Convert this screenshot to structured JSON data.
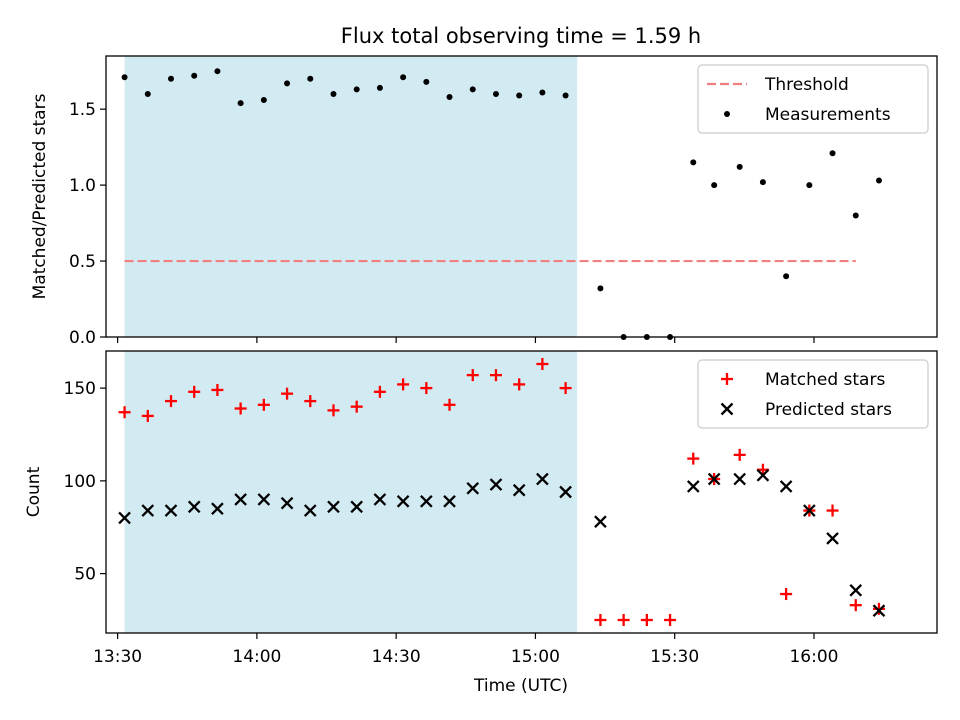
{
  "chart_data": {
    "title": "Flux total observing time = 1.59 h",
    "xlabel": "Time (UTC)",
    "x_unit": "minutes since 13:30 UTC",
    "x_ticks": [
      {
        "value": 0,
        "label": "13:30"
      },
      {
        "value": 30,
        "label": "14:00"
      },
      {
        "value": 60,
        "label": "14:30"
      },
      {
        "value": 90,
        "label": "15:00"
      },
      {
        "value": 120,
        "label": "15:30"
      },
      {
        "value": 150,
        "label": "16:00"
      }
    ],
    "xlim": [
      -2.5,
      176.5
    ],
    "shaded_interval": {
      "x0": 1.5,
      "x1": 99.0,
      "color": "#add8e6"
    },
    "panels": [
      {
        "type": "scatter",
        "ylabel": "Matched/Predicted stars",
        "ylim": [
          0,
          1.85
        ],
        "yticks": [
          0,
          0.5,
          1.0,
          1.5
        ],
        "ytick_labels": [
          "0.0",
          "0.5",
          "1.0",
          "1.5"
        ],
        "legend": "top-right",
        "threshold": {
          "name": "Threshold",
          "y": 0.5,
          "x_range": [
            1.5,
            159.0
          ],
          "color": "#f08080"
        },
        "series": [
          {
            "name": "Measurements",
            "color": "#000000",
            "marker": "dot",
            "points": [
              [
                1.5,
                1.71
              ],
              [
                6.5,
                1.6
              ],
              [
                11.5,
                1.7
              ],
              [
                16.5,
                1.72
              ],
              [
                21.5,
                1.75
              ],
              [
                26.5,
                1.54
              ],
              [
                31.5,
                1.56
              ],
              [
                36.5,
                1.67
              ],
              [
                41.5,
                1.7
              ],
              [
                46.5,
                1.6
              ],
              [
                51.5,
                1.63
              ],
              [
                56.5,
                1.64
              ],
              [
                61.5,
                1.71
              ],
              [
                66.5,
                1.68
              ],
              [
                71.5,
                1.58
              ],
              [
                76.5,
                1.63
              ],
              [
                81.5,
                1.6
              ],
              [
                86.5,
                1.59
              ],
              [
                91.5,
                1.61
              ],
              [
                96.5,
                1.59
              ],
              [
                104.0,
                0.32
              ],
              [
                109.0,
                0.0
              ],
              [
                114.0,
                0.0
              ],
              [
                119.0,
                0.0
              ],
              [
                124.0,
                1.15
              ],
              [
                128.5,
                1.0
              ],
              [
                134.0,
                1.12
              ],
              [
                139.0,
                1.02
              ],
              [
                144.0,
                0.4
              ],
              [
                149.0,
                1.0
              ],
              [
                154.0,
                1.21
              ],
              [
                159.0,
                0.8
              ],
              [
                164.0,
                1.03
              ]
            ]
          }
        ]
      },
      {
        "type": "scatter",
        "ylabel": "Count",
        "ylim": [
          18,
          170
        ],
        "yticks": [
          50,
          100,
          150
        ],
        "ytick_labels": [
          "50",
          "100",
          "150"
        ],
        "legend": "top-right",
        "series": [
          {
            "name": "Matched stars",
            "color": "#ff0000",
            "marker": "plus",
            "points": [
              [
                1.5,
                137
              ],
              [
                6.5,
                135
              ],
              [
                11.5,
                143
              ],
              [
                16.5,
                148
              ],
              [
                21.5,
                149
              ],
              [
                26.5,
                139
              ],
              [
                31.5,
                141
              ],
              [
                36.5,
                147
              ],
              [
                41.5,
                143
              ],
              [
                46.5,
                138
              ],
              [
                51.5,
                140
              ],
              [
                56.5,
                148
              ],
              [
                61.5,
                152
              ],
              [
                66.5,
                150
              ],
              [
                71.5,
                141
              ],
              [
                76.5,
                157
              ],
              [
                81.5,
                157
              ],
              [
                86.5,
                152
              ],
              [
                91.5,
                163
              ],
              [
                96.5,
                150
              ],
              [
                104.0,
                25
              ],
              [
                109.0,
                25
              ],
              [
                114.0,
                25
              ],
              [
                119.0,
                25
              ],
              [
                124.0,
                112
              ],
              [
                128.5,
                101
              ],
              [
                134.0,
                114
              ],
              [
                139.0,
                106
              ],
              [
                144.0,
                39
              ],
              [
                149.0,
                84
              ],
              [
                154.0,
                84
              ],
              [
                159.0,
                33
              ],
              [
                164.0,
                31
              ]
            ]
          },
          {
            "name": "Predicted stars",
            "color": "#000000",
            "marker": "x",
            "points": [
              [
                1.5,
                80
              ],
              [
                6.5,
                84
              ],
              [
                11.5,
                84
              ],
              [
                16.5,
                86
              ],
              [
                21.5,
                85
              ],
              [
                26.5,
                90
              ],
              [
                31.5,
                90
              ],
              [
                36.5,
                88
              ],
              [
                41.5,
                84
              ],
              [
                46.5,
                86
              ],
              [
                51.5,
                86
              ],
              [
                56.5,
                90
              ],
              [
                61.5,
                89
              ],
              [
                66.5,
                89
              ],
              [
                71.5,
                89
              ],
              [
                76.5,
                96
              ],
              [
                81.5,
                98
              ],
              [
                86.5,
                95
              ],
              [
                91.5,
                101
              ],
              [
                96.5,
                94
              ],
              [
                104.0,
                78
              ],
              [
                128.5,
                101
              ],
              [
                124.0,
                97
              ],
              [
                134.0,
                101
              ],
              [
                139.0,
                103
              ],
              [
                144.0,
                97
              ],
              [
                149.0,
                84
              ],
              [
                154.0,
                69
              ],
              [
                159.0,
                41
              ],
              [
                164.0,
                30
              ]
            ]
          }
        ]
      }
    ]
  }
}
